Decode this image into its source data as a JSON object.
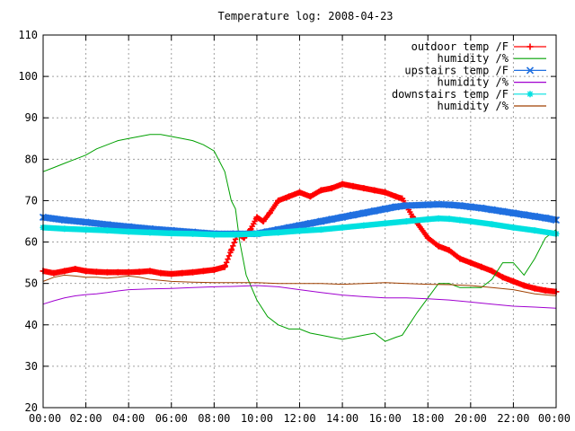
{
  "chart_data": {
    "type": "line",
    "title": "Temperature log: 2008-04-23",
    "xlabel": "",
    "ylabel": "",
    "xlim": [
      0,
      24
    ],
    "ylim": [
      20,
      110
    ],
    "grid": true,
    "legend_position": "top-right",
    "x_tick_labels": [
      "00:00",
      "02:00",
      "04:00",
      "06:00",
      "08:00",
      "10:00",
      "12:00",
      "14:00",
      "16:00",
      "18:00",
      "20:00",
      "22:00",
      "00:00"
    ],
    "y_tick_labels": [
      "20",
      "30",
      "40",
      "50",
      "60",
      "70",
      "80",
      "90",
      "100",
      "110"
    ],
    "series": [
      {
        "name": "outdoor temp /F",
        "color": "#ff0000",
        "marker": "plus",
        "dense": true,
        "x": [
          0,
          0.5,
          1,
          1.5,
          2,
          2.5,
          3,
          3.5,
          4,
          4.5,
          5,
          5.5,
          6,
          6.5,
          7,
          7.5,
          8,
          8.5,
          8.8,
          9.1,
          9.4,
          9.7,
          10,
          10.3,
          10.6,
          11,
          11.5,
          12,
          12.5,
          13,
          13.5,
          14,
          14.5,
          15,
          15.5,
          16,
          16.5,
          16.8,
          17.3,
          18,
          18.5,
          19,
          19.5,
          20,
          20.5,
          21,
          21.5,
          22,
          22.5,
          23,
          23.5,
          24
        ],
        "y": [
          53,
          52.5,
          53,
          53.5,
          53,
          52.8,
          52.7,
          52.7,
          52.7,
          52.8,
          53,
          52.5,
          52.3,
          52.5,
          52.7,
          53,
          53.3,
          54,
          58,
          62,
          61,
          63,
          66,
          65,
          67,
          70,
          71,
          72,
          71,
          72.5,
          73,
          74,
          73.5,
          73,
          72.5,
          72,
          71,
          70.5,
          66,
          61,
          59,
          58,
          56,
          55,
          54,
          53,
          51.5,
          50.5,
          49.5,
          48.8,
          48.3,
          48
        ]
      },
      {
        "name": "humidity /%",
        "color": "#00a000",
        "marker": "none",
        "dense": false,
        "x": [
          0,
          0.5,
          1,
          1.5,
          2,
          2.5,
          3,
          3.5,
          4,
          4.5,
          5,
          5.5,
          6,
          6.5,
          7,
          7.5,
          8,
          8.5,
          8.8,
          9,
          9.2,
          9.5,
          10,
          10.5,
          11,
          11.5,
          12,
          12.5,
          13,
          13.5,
          14,
          14.5,
          15,
          15.5,
          16,
          16.5,
          16.8,
          17.5,
          18.5,
          19,
          19.5,
          20,
          20.5,
          21,
          21.5,
          22,
          22.5,
          23,
          23.5,
          24
        ],
        "y": [
          77,
          78,
          79,
          80,
          81,
          82.5,
          83.5,
          84.5,
          85,
          85.5,
          86,
          86,
          85.5,
          85,
          84.5,
          83.5,
          82,
          77,
          70,
          68,
          60,
          52,
          46,
          42,
          40,
          39,
          39,
          38,
          37.5,
          37,
          36.5,
          37,
          37.5,
          38,
          36,
          37,
          37.5,
          43,
          50,
          50,
          49,
          49,
          49,
          51,
          55,
          55,
          52,
          56,
          61,
          63
        ]
      },
      {
        "name": "upstairs temp /F",
        "color": "#2070e0",
        "marker": "x",
        "dense": true,
        "x": [
          0,
          1,
          2,
          3,
          4,
          5,
          6,
          7,
          8,
          9,
          10,
          10.5,
          11,
          11.5,
          12,
          12.5,
          13,
          13.5,
          14,
          14.5,
          15,
          15.5,
          16,
          16.5,
          17,
          18,
          18.5,
          19,
          19.5,
          20,
          20.5,
          21,
          21.5,
          22,
          22.5,
          23,
          23.5,
          24
        ],
        "y": [
          66,
          65.3,
          64.8,
          64.2,
          63.7,
          63.2,
          62.8,
          62.4,
          62,
          62,
          62,
          62.5,
          63,
          63.5,
          64,
          64.5,
          65,
          65.5,
          66,
          66.5,
          67,
          67.5,
          68,
          68.5,
          68.8,
          69,
          69.1,
          69,
          68.8,
          68.5,
          68.2,
          67.8,
          67.4,
          67,
          66.6,
          66.2,
          65.8,
          65.3
        ]
      },
      {
        "name": "humidity /%",
        "color": "#a000d0",
        "marker": "none",
        "dense": false,
        "x": [
          0,
          0.5,
          1,
          1.5,
          2,
          2.5,
          3,
          3.5,
          4,
          5,
          6,
          7,
          8,
          9,
          10,
          11,
          12,
          13,
          14,
          15,
          16,
          17,
          18,
          19,
          20,
          21,
          22,
          23,
          24
        ],
        "y": [
          45,
          45.8,
          46.5,
          47,
          47.3,
          47.5,
          47.8,
          48.2,
          48.5,
          48.7,
          48.8,
          49,
          49.2,
          49.3,
          49.5,
          49.2,
          48.5,
          47.8,
          47.2,
          46.8,
          46.5,
          46.5,
          46.3,
          46,
          45.5,
          45,
          44.5,
          44.3,
          44
        ]
      },
      {
        "name": "downstairs temp /F",
        "color": "#00e0e0",
        "marker": "star",
        "dense": true,
        "x": [
          0,
          1,
          2,
          3,
          4,
          5,
          6,
          7,
          8,
          9,
          10,
          11,
          12,
          13,
          14,
          15,
          16,
          17,
          18,
          18.5,
          19,
          19.5,
          20,
          21,
          22,
          23,
          24
        ],
        "y": [
          63.5,
          63.2,
          63,
          62.8,
          62.5,
          62.3,
          62.1,
          62,
          61.8,
          61.8,
          62,
          62.3,
          62.7,
          63,
          63.5,
          64,
          64.5,
          65,
          65.5,
          65.7,
          65.6,
          65.3,
          65,
          64.3,
          63.5,
          62.8,
          62
        ]
      },
      {
        "name": "humidity /%",
        "color": "#a04000",
        "marker": "none",
        "dense": false,
        "x": [
          0,
          0.5,
          1,
          1.5,
          2,
          2.5,
          3,
          3.5,
          4,
          4.5,
          5,
          6,
          7,
          8,
          9,
          10,
          11,
          12,
          13,
          14,
          15,
          16,
          17,
          18,
          19,
          20,
          21,
          22,
          23,
          24
        ],
        "y": [
          50.5,
          51.5,
          52,
          51.8,
          51.5,
          51.5,
          51.3,
          51.5,
          51.8,
          51.5,
          51,
          50.5,
          50.3,
          50.2,
          50.2,
          50.2,
          50,
          50,
          50,
          49.8,
          50,
          50.2,
          50,
          49.8,
          49.7,
          49.5,
          49,
          48.5,
          47.5,
          47
        ]
      }
    ]
  }
}
